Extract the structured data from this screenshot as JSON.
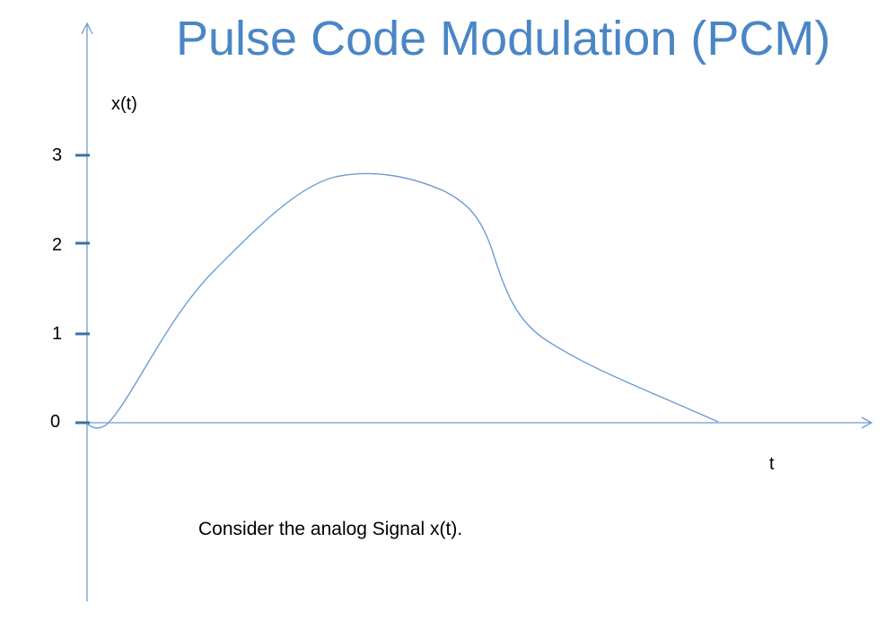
{
  "title": "Pulse Code Modulation (PCM)",
  "y_axis_label": "x(t)",
  "x_axis_label": "t",
  "caption": "Consider the analog Signal x(t).",
  "y_ticks": [
    "0",
    "1",
    "2",
    "3"
  ],
  "colors": {
    "title": "#4a86c6",
    "axes": "#6e9dcf",
    "ticks": "#3d6fa8",
    "signal": "#6e9dcf"
  }
}
